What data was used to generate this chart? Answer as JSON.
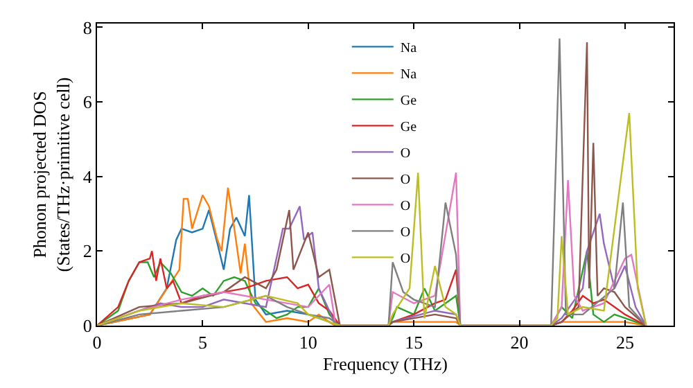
{
  "chart_data": {
    "type": "line",
    "xlabel": "Frequency (THz)",
    "ylabel": "Phonon projected DOS\n(States/THz·primitive cell)",
    "xlim": [
      0,
      27.3
    ],
    "ylim": [
      0,
      8.1
    ],
    "xticks": [
      0,
      5,
      10,
      15,
      20,
      25
    ],
    "yticks": [
      0,
      2,
      4,
      6,
      8
    ],
    "legend": "top",
    "marker": "none",
    "line_style": "solid",
    "series": [
      {
        "name": "Na",
        "color": "#1f77b4",
        "x": [
          0,
          2.5,
          3.3,
          3.75,
          4.0,
          4.5,
          5.0,
          5.3,
          5.7,
          6.0,
          6.3,
          6.6,
          7.0,
          7.2,
          7.5,
          8.0,
          9.0,
          10.0,
          10.5,
          11.0,
          11.3
        ],
        "values": [
          0,
          0.3,
          1.0,
          2.3,
          2.6,
          2.5,
          2.6,
          3.1,
          2.2,
          1.5,
          2.6,
          2.9,
          2.4,
          3.5,
          0.7,
          0.3,
          0.4,
          0.3,
          0.2,
          0.1,
          0
        ]
      },
      {
        "name": "Na",
        "color": "#ff7f0e",
        "x": [
          0,
          2.5,
          3.9,
          4.1,
          4.3,
          4.5,
          5.0,
          5.3,
          5.7,
          5.9,
          6.2,
          6.5,
          6.8,
          7.0,
          7.3,
          8.0,
          9.0,
          10.0,
          10.5,
          11.0,
          11.3,
          13.8,
          14.0,
          15.0,
          16.0,
          17.0,
          17.2,
          21.5,
          22.0,
          23.0,
          24.0,
          25.0,
          26.0
        ],
        "values": [
          0,
          0.3,
          1.5,
          3.4,
          3.4,
          2.6,
          3.5,
          3.2,
          2.3,
          2.0,
          3.7,
          2.6,
          1.4,
          2.2,
          0.6,
          0.1,
          0.2,
          0.1,
          0.3,
          0.1,
          0,
          0,
          0.1,
          0.1,
          0.1,
          0.1,
          0,
          0,
          0.1,
          0.1,
          0.1,
          0.1,
          0
        ]
      },
      {
        "name": "Ge",
        "color": "#2ca02c",
        "x": [
          0,
          1.0,
          1.5,
          2.0,
          2.4,
          2.7,
          3.0,
          3.5,
          4.0,
          4.5,
          5.0,
          5.5,
          6.0,
          6.5,
          7.0,
          7.5,
          8.0,
          8.5,
          9.0,
          9.5,
          10.0,
          10.5,
          11.0,
          11.5,
          13.8,
          14.0,
          14.2,
          15.0,
          15.5,
          16.0,
          17.0,
          17.2,
          21.5,
          22.0,
          22.5,
          23.2,
          23.5,
          24.0,
          24.5,
          25.0,
          26.0
        ],
        "values": [
          0,
          0.4,
          1.2,
          1.7,
          1.7,
          1.3,
          1.7,
          1.4,
          0.9,
          0.8,
          1.0,
          0.8,
          1.2,
          1.3,
          1.2,
          0.6,
          0.4,
          0.2,
          0.3,
          0.5,
          0.5,
          1.0,
          0.3,
          0,
          0,
          0.2,
          0.5,
          0.3,
          1.0,
          0.4,
          0.8,
          0,
          0,
          0.5,
          0.2,
          2.0,
          0.3,
          0.1,
          0.3,
          0.2,
          0
        ]
      },
      {
        "name": "Ge",
        "color": "#d62728",
        "x": [
          0,
          1.0,
          1.5,
          2.0,
          2.5,
          2.6,
          2.8,
          3.0,
          3.3,
          3.6,
          4.0,
          5.0,
          6.0,
          7.0,
          8.0,
          9.0,
          9.5,
          10.0,
          10.5,
          11.0,
          11.5,
          13.8,
          14.0,
          15.0,
          16.0,
          16.5,
          17.0,
          17.2,
          21.5,
          22.0,
          22.5,
          23.0,
          23.5,
          24.0,
          24.5,
          25.0,
          26.0
        ],
        "values": [
          0,
          0.5,
          1.2,
          1.7,
          1.8,
          2.0,
          1.2,
          1.8,
          1.0,
          1.2,
          0.6,
          0.8,
          0.9,
          1.0,
          1.2,
          1.3,
          1.0,
          1.1,
          0.6,
          0.4,
          0,
          0,
          0.1,
          0.3,
          0.6,
          0.7,
          1.5,
          0,
          0,
          0.1,
          0.4,
          0.8,
          0.6,
          0.7,
          0.5,
          0.3,
          0
        ]
      },
      {
        "name": "O",
        "color": "#9467bd",
        "x": [
          0,
          2.0,
          3.0,
          4.0,
          5.0,
          6.0,
          7.0,
          8.0,
          8.8,
          9.1,
          9.6,
          9.8,
          10.2,
          10.5,
          11.0,
          11.3,
          13.8,
          14.0,
          16.0,
          17.0,
          17.2,
          21.5,
          22.0,
          23.0,
          23.2,
          23.8,
          24.0,
          24.5,
          25.0,
          25.5,
          26.0
        ],
        "values": [
          0,
          0.4,
          0.6,
          0.5,
          0.5,
          0.7,
          0.6,
          0.5,
          2.6,
          2.6,
          3.2,
          2.3,
          2.5,
          1.0,
          0.4,
          0,
          0,
          0.1,
          0.4,
          0.3,
          0,
          0,
          0.2,
          1.0,
          2.0,
          3.0,
          2.2,
          1.0,
          1.6,
          0.5,
          0
        ]
      },
      {
        "name": "O",
        "color": "#8c564b",
        "x": [
          0,
          2.0,
          4.0,
          6.0,
          7.0,
          8.0,
          8.5,
          9.1,
          9.3,
          10.0,
          10.5,
          11.0,
          11.5,
          13.8,
          14.0,
          16.0,
          17.0,
          17.2,
          21.5,
          22.0,
          22.8,
          23.2,
          23.3,
          23.5,
          23.7,
          24.0,
          24.5,
          25.0,
          26.0
        ],
        "values": [
          0,
          0.5,
          0.6,
          0.9,
          1.3,
          1.0,
          1.5,
          3.1,
          1.5,
          2.5,
          1.3,
          1.5,
          0,
          0,
          0.1,
          0.3,
          0.2,
          0,
          0,
          0.1,
          0.5,
          7.6,
          1.0,
          4.9,
          0.8,
          1.0,
          0.9,
          0.5,
          0
        ]
      },
      {
        "name": "O",
        "color": "#e377c2",
        "x": [
          0,
          2.0,
          4.0,
          6.0,
          8.0,
          10.0,
          11.0,
          11.3,
          13.8,
          14.0,
          15.0,
          16.0,
          17.0,
          17.2,
          21.5,
          22.0,
          22.3,
          22.6,
          23.0,
          23.5,
          24.0,
          25.0,
          25.3,
          26.0
        ],
        "values": [
          0,
          0.4,
          0.7,
          0.9,
          0.7,
          0.5,
          1.1,
          0,
          0,
          0.9,
          0.6,
          0.8,
          4.1,
          0,
          0,
          0.5,
          3.9,
          0.8,
          0.4,
          0.5,
          0.6,
          1.8,
          1.9,
          0
        ]
      },
      {
        "name": "O",
        "color": "#7f7f7f",
        "x": [
          0,
          2.0,
          4.0,
          6.0,
          8.0,
          9.0,
          10.0,
          11.0,
          11.5,
          13.8,
          14.0,
          14.5,
          15.0,
          16.0,
          16.5,
          17.0,
          17.2,
          21.5,
          21.9,
          22.2,
          23.0,
          24.5,
          24.9,
          25.2,
          26.0
        ],
        "values": [
          0,
          0.3,
          0.4,
          0.5,
          0.8,
          0.5,
          0.3,
          0.2,
          0,
          0,
          1.7,
          0.9,
          0.7,
          0.5,
          3.3,
          1.9,
          0,
          0,
          7.7,
          0.3,
          0.3,
          1.0,
          3.3,
          0.5,
          0
        ]
      },
      {
        "name": "O",
        "color": "#bcbd22",
        "x": [
          0,
          2.0,
          4.0,
          6.0,
          8.0,
          9.5,
          10.0,
          11.0,
          11.5,
          13.8,
          14.0,
          14.8,
          15.2,
          15.5,
          16.0,
          16.5,
          17.0,
          17.2,
          21.5,
          21.8,
          22.0,
          22.3,
          23.0,
          24.0,
          25.2,
          25.6,
          26.0
        ],
        "values": [
          0,
          0.4,
          0.6,
          0.5,
          0.8,
          0.6,
          0.3,
          0.1,
          0,
          0,
          0.3,
          1.0,
          4.1,
          0.2,
          1.6,
          0.5,
          0.3,
          0,
          0,
          0.2,
          2.4,
          0.3,
          0.5,
          0.4,
          5.7,
          1.0,
          0
        ]
      }
    ]
  }
}
